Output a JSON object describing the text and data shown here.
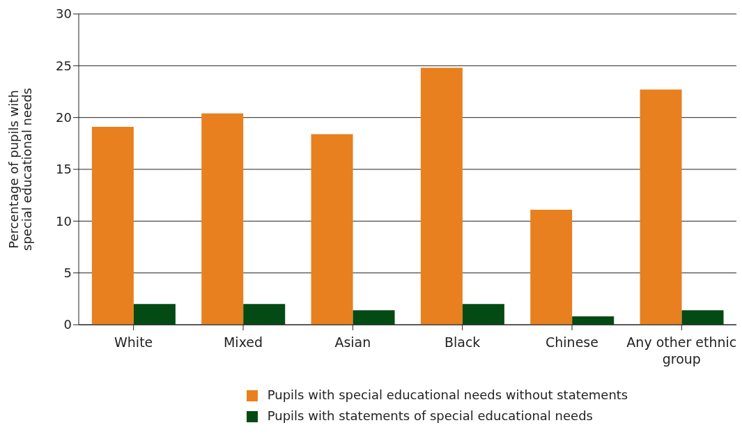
{
  "chart_data": {
    "type": "bar",
    "ylabel": "Percentage of pupils with special educational needs",
    "categories": [
      "White",
      "Mixed",
      "Asian",
      "Black",
      "Chinese",
      "Any other ethnic group"
    ],
    "series": [
      {
        "name": "Pupils with special educational needs without statements",
        "color": "#e8801f",
        "values": [
          19.1,
          20.4,
          18.4,
          24.8,
          11.1,
          22.7
        ]
      },
      {
        "name": "Pupils with statements of special educational needs",
        "color": "#034a14",
        "values": [
          2.0,
          2.0,
          1.4,
          2.0,
          0.8,
          1.4
        ]
      }
    ],
    "ylim": [
      0,
      30
    ],
    "yticks": [
      0,
      5,
      10,
      15,
      20,
      25,
      30
    ],
    "grid": "y",
    "legend": "bottom"
  }
}
